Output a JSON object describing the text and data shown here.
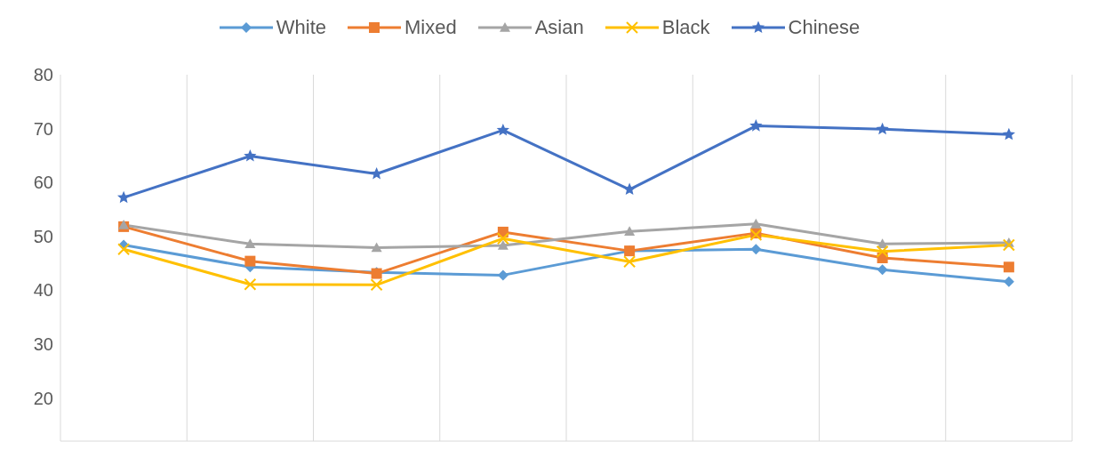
{
  "chart_data": {
    "type": "line",
    "categories": [
      null,
      null,
      null,
      null,
      null,
      null,
      null,
      null
    ],
    "series": [
      {
        "name": "White",
        "color": "#5b9bd5",
        "marker": "diamond",
        "values": [
          48.4,
          44.3,
          43.3,
          42.8,
          47.3,
          47.6,
          43.8,
          41.6
        ]
      },
      {
        "name": "Mixed",
        "color": "#ed7d31",
        "marker": "square",
        "values": [
          51.8,
          45.4,
          43.1,
          50.8,
          47.3,
          50.6,
          46.0,
          44.3
        ]
      },
      {
        "name": "Asian",
        "color": "#a5a5a5",
        "marker": "triangle",
        "values": [
          52.1,
          48.6,
          47.9,
          48.3,
          50.9,
          52.3,
          48.6,
          48.8
        ]
      },
      {
        "name": "Black",
        "color": "#ffc000",
        "marker": "cross",
        "values": [
          47.6,
          41.1,
          41.0,
          49.6,
          45.3,
          50.3,
          47.2,
          48.4
        ]
      },
      {
        "name": "Chinese",
        "color": "#4472c4",
        "marker": "star",
        "values": [
          57.2,
          64.9,
          61.6,
          69.7,
          58.7,
          70.5,
          69.9,
          68.9
        ]
      }
    ],
    "ylim": [
      12,
      80
    ],
    "yticks": [
      20,
      30,
      40,
      50,
      60,
      70,
      80
    ],
    "grid": "x",
    "legend": "top",
    "tick_labels": "y"
  }
}
